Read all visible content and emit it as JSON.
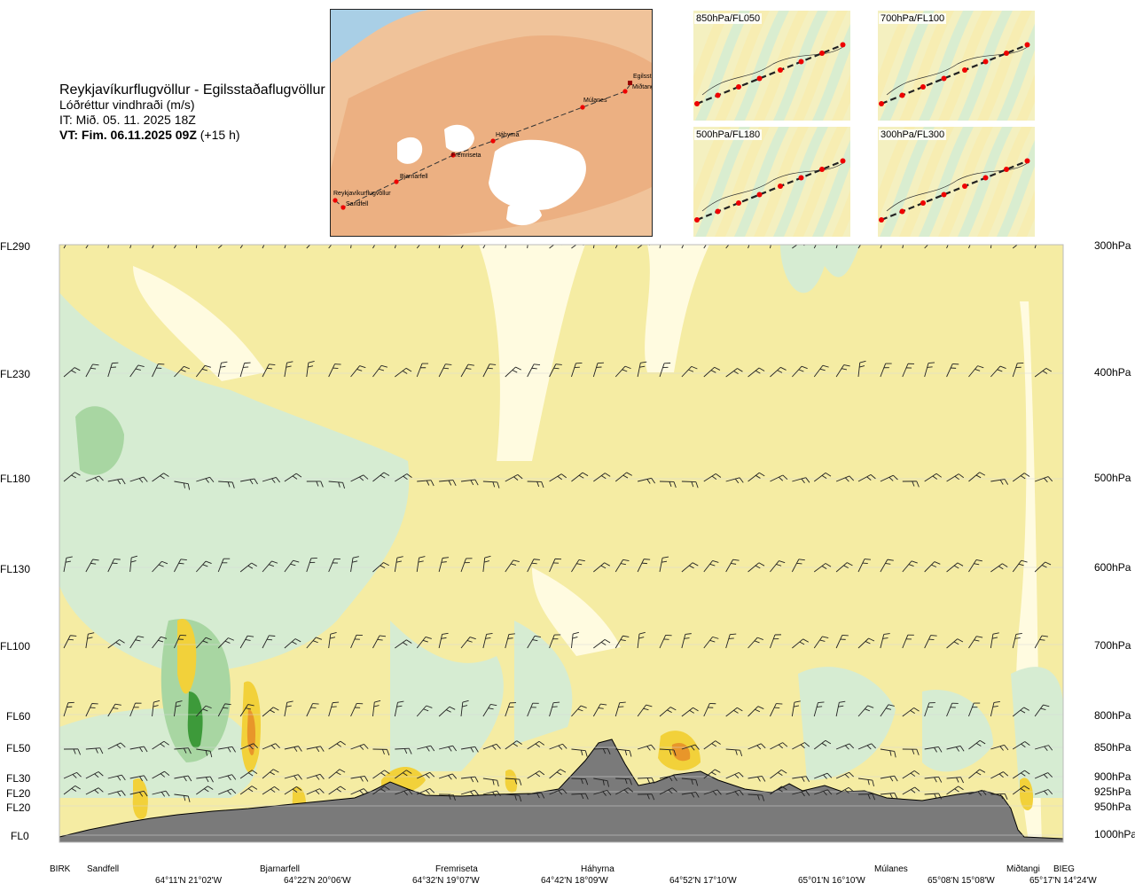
{
  "header": {
    "title": "Reykjavíkurflugvöllur - Egilsstaðaflugvöllur",
    "subtitle": "Lóðréttur vindhraði (m/s)",
    "issue_time": "IT: Mið. 05. 11. 2025 18Z",
    "valid_bold": "VT: Fim. 06.11.2025 09Z",
    "valid_offset": "(+15 h)"
  },
  "map": {
    "labels": [
      "Reykjavíkurflugvöllur",
      "Sandfell",
      "Bjarnarfell",
      "Fremriseta",
      "Háhyrna",
      "Múlanes",
      "Egilsstaðir",
      "Miðtangi"
    ]
  },
  "mini_maps": [
    {
      "label": "850hPa/FL050"
    },
    {
      "label": "700hPa/FL100"
    },
    {
      "label": "500hPa/FL180"
    },
    {
      "label": "300hPa/FL300"
    }
  ],
  "chart_data": {
    "type": "heatmap",
    "quantity": "Lóðréttur vindhraði (m/s)",
    "levels": [
      {
        "fl": "FL290",
        "hpa": "300hPa"
      },
      {
        "fl": "FL230",
        "hpa": "400hPa"
      },
      {
        "fl": "FL180",
        "hpa": "500hPa"
      },
      {
        "fl": "FL130",
        "hpa": "600hPa"
      },
      {
        "fl": "FL100",
        "hpa": "700hPa"
      },
      {
        "fl": "FL60",
        "hpa": "800hPa"
      },
      {
        "fl": "FL50",
        "hpa": "850hPa"
      },
      {
        "fl": "FL30",
        "hpa": "900hPa"
      },
      {
        "fl": "FL20",
        "hpa": "925hPa"
      },
      {
        "fl": "FL20",
        "hpa": "950hPa"
      },
      {
        "fl": "FL0",
        "hpa": "1000hPa"
      }
    ],
    "locations": [
      "BIRK",
      "Sandfell",
      "Bjarnarfell",
      "Fremriseta",
      "Háhyrna",
      "Múlanes",
      "Miðtangi",
      "BIEG"
    ],
    "coordinates": [
      "64°11'N 21°02'W",
      "64°22'N 20°06'W",
      "64°32'N 19°07'W",
      "64°42'N 18°09'W",
      "64°52'N 17°10'W",
      "65°01'N 16°10'W",
      "65°08'N 15°08'W",
      "65°17'N 14°24'W"
    ],
    "colors": {
      "background": "#f5eca3",
      "light_green": "#d6ecd2",
      "green": "#a8d6a2",
      "dark_green": "#3d9a3a",
      "pale": "#fffdea",
      "yellow": "#f2d13a",
      "orange": "#e8962a",
      "terrain": "#7a7a7a"
    }
  }
}
